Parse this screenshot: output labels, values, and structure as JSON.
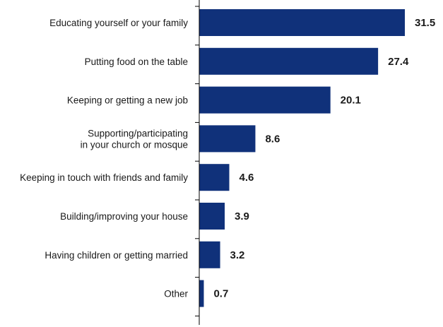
{
  "chart_data": {
    "type": "bar",
    "orientation": "horizontal",
    "title": "",
    "xlabel": "",
    "ylabel": "",
    "categories": [
      "Educating yourself or your family",
      "Putting food on the table",
      "Keeping or getting a new job",
      "Supporting/participating\nin your church or mosque",
      "Keeping in touch with friends and family",
      "Building/improving your house",
      "Having children or getting married",
      "Other"
    ],
    "values": [
      31.5,
      27.4,
      20.1,
      8.6,
      4.6,
      3.9,
      3.2,
      0.7
    ],
    "value_labels": [
      "31.5",
      "27.4",
      "20.1",
      "8.6",
      "4.6",
      "3.9",
      "3.2",
      "0.7"
    ],
    "xlim": [
      0,
      31.5
    ],
    "grid": false,
    "legend": "none",
    "colors": {
      "bar": "#10317a",
      "axis": "#000000",
      "text": "#1a1a1a"
    }
  }
}
